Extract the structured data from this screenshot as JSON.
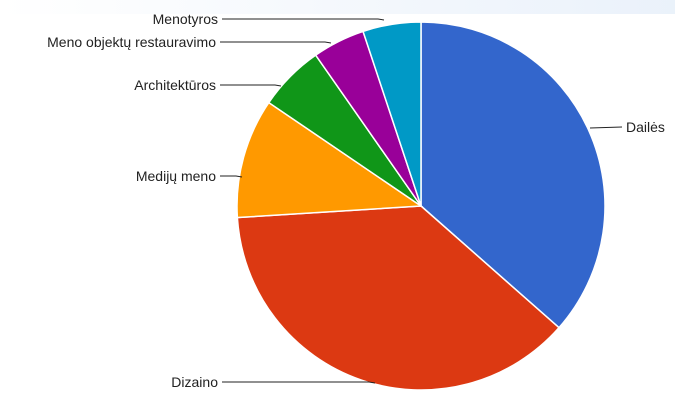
{
  "chart_data": {
    "type": "pie",
    "title": "",
    "legend": "labels-with-leader-lines",
    "categories": [
      "Dailės",
      "Dizaino",
      "Medijų meno",
      "Architektūros",
      "Meno objektų restauravimo",
      "Menotyros"
    ],
    "values": [
      36.5,
      37.5,
      10.5,
      5.8,
      4.6,
      5.1
    ],
    "colors": [
      "#3366cc",
      "#dc3912",
      "#ff9900",
      "#109618",
      "#990099",
      "#0099c6"
    ]
  }
}
